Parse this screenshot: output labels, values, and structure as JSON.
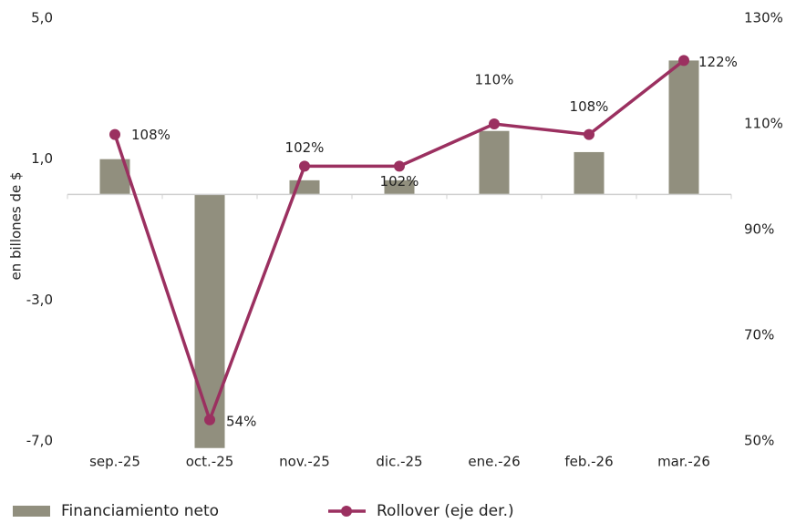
{
  "chart_data": {
    "type": "bar_line",
    "categories": [
      "sep.-25",
      "oct.-25",
      "nov.-25",
      "dic.-25",
      "ene.-26",
      "feb.-26",
      "mar.-26"
    ],
    "ylabel": "en billones de $",
    "ylim": [
      -7,
      5
    ],
    "yticks": [
      {
        "value": -7,
        "label": "-7,0"
      },
      {
        "value": -3,
        "label": "-3,0"
      },
      {
        "value": 1,
        "label": "1,0"
      },
      {
        "value": 5,
        "label": "5,0"
      }
    ],
    "y2lim": [
      50,
      130
    ],
    "y2ticks": [
      {
        "value": 50,
        "label": "50%"
      },
      {
        "value": 70,
        "label": "70%"
      },
      {
        "value": 90,
        "label": "90%"
      },
      {
        "value": 110,
        "label": "110%"
      },
      {
        "value": 130,
        "label": "130%"
      }
    ],
    "series": [
      {
        "name": "Financiamiento neto",
        "type": "bar",
        "color": "#918f7e",
        "values": [
          1.0,
          -7.2,
          0.4,
          0.4,
          1.8,
          1.2,
          3.8
        ]
      },
      {
        "name": "Rollover (eje der.)",
        "type": "line",
        "axis": "y2",
        "color": "#9b3060",
        "values": [
          108,
          54,
          102,
          102,
          110,
          108,
          122
        ],
        "value_labels": [
          "108%",
          "54%",
          "102%",
          "102%",
          "110%",
          "108%",
          "122%"
        ]
      }
    ]
  }
}
